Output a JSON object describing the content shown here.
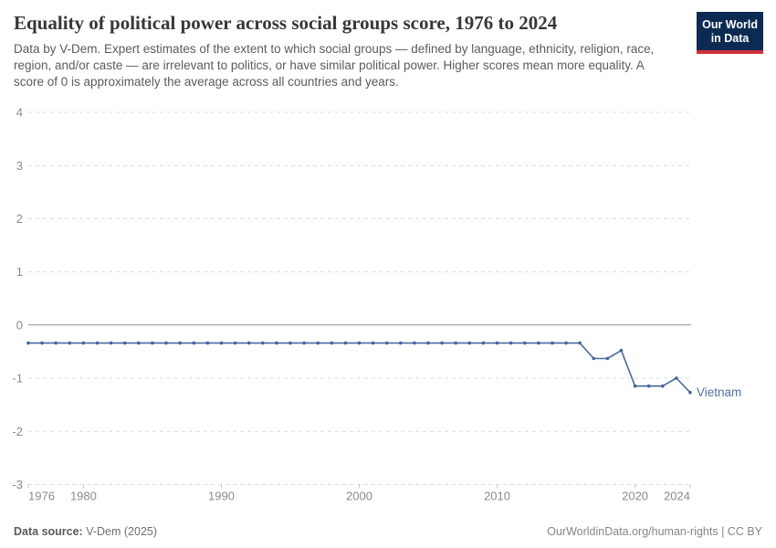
{
  "header": {
    "title": "Equality of political power across social groups score, 1976 to 2024",
    "subtitle": "Data by V-Dem. Expert estimates of the extent to which social groups — defined by language, ethnicity, religion, race, region, and/or caste — are irrelevant to politics, or have similar political power. Higher scores mean more equality. A score of 0 is approximately the average across all countries and years.",
    "logo": {
      "line1": "Our World",
      "line2": "in Data",
      "bg_color": "#0d2b52",
      "stripe_color": "#cf303d"
    }
  },
  "chart_data": {
    "type": "line",
    "title": "Equality of political power across social groups score, 1976 to 2024",
    "entity": "Vietnam",
    "xlabel": "",
    "ylabel": "",
    "xlim": [
      1976,
      2024
    ],
    "ylim": [
      -3,
      4
    ],
    "yticks": [
      4,
      3,
      2,
      1,
      0,
      -1,
      -2,
      -3
    ],
    "xticks": [
      1976,
      1980,
      1990,
      2000,
      2010,
      2020,
      2024
    ],
    "grid": "horizontal dashed gridlines, solid zero line, dashed bottom axis with year ticks",
    "legend": "end-of-line entity label",
    "x": [
      1976,
      1977,
      1978,
      1979,
      1980,
      1981,
      1982,
      1983,
      1984,
      1985,
      1986,
      1987,
      1988,
      1989,
      1990,
      1991,
      1992,
      1993,
      1994,
      1995,
      1996,
      1997,
      1998,
      1999,
      2000,
      2001,
      2002,
      2003,
      2004,
      2005,
      2006,
      2007,
      2008,
      2009,
      2010,
      2011,
      2012,
      2013,
      2014,
      2015,
      2016,
      2017,
      2018,
      2019,
      2020,
      2021,
      2022,
      2023,
      2024
    ],
    "series": [
      {
        "name": "Vietnam",
        "values": [
          -0.34,
          -0.34,
          -0.34,
          -0.34,
          -0.34,
          -0.34,
          -0.34,
          -0.34,
          -0.34,
          -0.34,
          -0.34,
          -0.34,
          -0.34,
          -0.34,
          -0.34,
          -0.34,
          -0.34,
          -0.34,
          -0.34,
          -0.34,
          -0.34,
          -0.34,
          -0.34,
          -0.34,
          -0.34,
          -0.34,
          -0.34,
          -0.34,
          -0.34,
          -0.34,
          -0.34,
          -0.34,
          -0.34,
          -0.34,
          -0.34,
          -0.34,
          -0.34,
          -0.34,
          -0.34,
          -0.34,
          -0.34,
          -0.63,
          -0.63,
          -0.48,
          -1.15,
          -1.15,
          -1.15,
          -1.0,
          -1.27
        ]
      }
    ],
    "colors": {
      "line": "#4c6a9c",
      "marker": "#44639e",
      "grid": "#dcdcdc",
      "zero_line": "#8f8f8f",
      "tick": "#c4c4c4",
      "axis_text": "#8a8a8a",
      "entity_label": "#53719c"
    }
  },
  "footer": {
    "source_label": "Data source:",
    "source_value": " V-Dem (2025)",
    "link": "OurWorldinData.org/human-rights | CC BY"
  }
}
